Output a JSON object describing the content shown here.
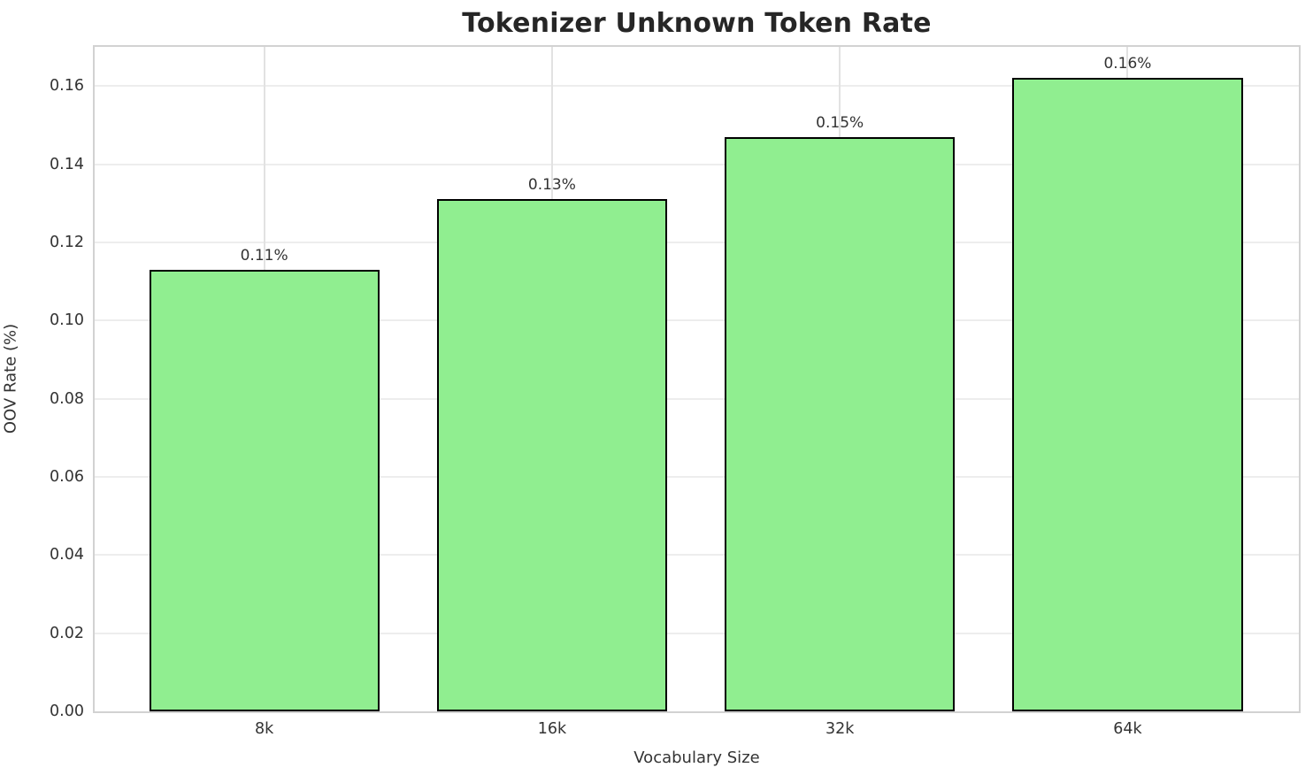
{
  "chart_data": {
    "type": "bar",
    "title": "Tokenizer Unknown Token Rate",
    "xlabel": "Vocabulary Size",
    "ylabel": "OOV Rate (%)",
    "categories": [
      "8k",
      "16k",
      "32k",
      "64k"
    ],
    "values": [
      0.113,
      0.131,
      0.147,
      0.162
    ],
    "bar_labels": [
      "0.11%",
      "0.13%",
      "0.15%",
      "0.16%"
    ],
    "yticks": [
      0.0,
      0.02,
      0.04,
      0.06,
      0.08,
      0.1,
      0.12,
      0.14,
      0.16
    ],
    "ytick_labels": [
      "0.00",
      "0.02",
      "0.04",
      "0.06",
      "0.08",
      "0.10",
      "0.12",
      "0.14",
      "0.16"
    ],
    "ylim": [
      0,
      0.17
    ],
    "grid": true,
    "legend": false,
    "colors": {
      "bar_fill": "#90EE90",
      "bar_edge": "#000000",
      "gridline": "#ededed",
      "spine": "#d2d2d2",
      "title_text": "#262626",
      "tick_text": "#333333"
    }
  }
}
